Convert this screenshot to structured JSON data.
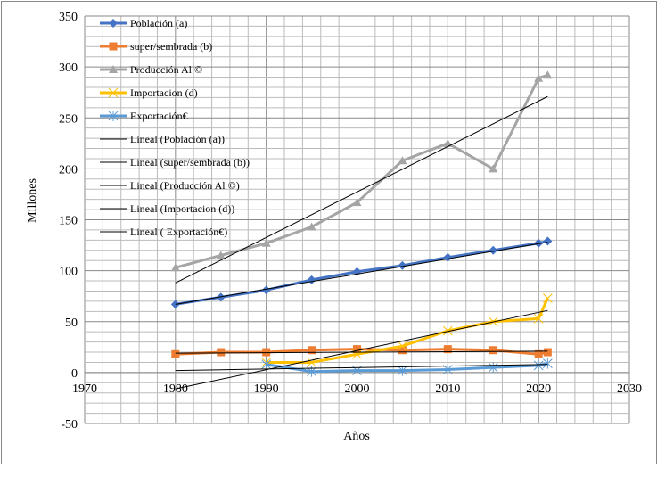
{
  "chart_data": {
    "type": "line",
    "xlabel": "Años",
    "ylabel": "Millones",
    "xlim": [
      1970,
      2030
    ],
    "ylim": [
      -50,
      350
    ],
    "xticks": [
      1970,
      1980,
      1990,
      2000,
      2010,
      2020,
      2030
    ],
    "yticks": [
      -50,
      0,
      50,
      100,
      150,
      200,
      250,
      300,
      350
    ],
    "grid": true,
    "legend": "top-left",
    "series": [
      {
        "name": "Población (a)",
        "color": "#4472C4",
        "marker": "diamond",
        "x": [
          1980,
          1985,
          1990,
          1995,
          2000,
          2005,
          2010,
          2015,
          2020,
          2021
        ],
        "values": [
          67,
          74,
          81,
          91,
          99,
          105,
          113,
          120,
          127,
          129
        ]
      },
      {
        "name": "super/sembrada (b)",
        "color": "#ED7D31",
        "marker": "square",
        "x": [
          1980,
          1985,
          1990,
          1995,
          2000,
          2005,
          2010,
          2015,
          2020,
          2021
        ],
        "values": [
          18,
          20,
          20,
          22,
          23,
          22,
          23,
          22,
          18,
          20
        ]
      },
      {
        "name": "Producción Al ©",
        "color": "#A5A5A5",
        "marker": "triangle",
        "x": [
          1980,
          1985,
          1990,
          1995,
          2000,
          2005,
          2010,
          2015,
          2020,
          2021
        ],
        "values": [
          103,
          115,
          127,
          143,
          167,
          208,
          225,
          200,
          289,
          292
        ]
      },
      {
        "name": "Importacion (d)",
        "color": "#FFC000",
        "marker": "x",
        "x": [
          1990,
          1995,
          2000,
          2005,
          2010,
          2015,
          2020,
          2021
        ],
        "values": [
          10,
          10,
          18,
          26,
          41,
          50,
          53,
          73
        ]
      },
      {
        "name": " Exportación€",
        "color": "#5B9BD5",
        "marker": "star",
        "x": [
          1990,
          1995,
          2000,
          2005,
          2010,
          2015,
          2020,
          2021
        ],
        "values": [
          8,
          1,
          2,
          2,
          3,
          5,
          7,
          9
        ]
      }
    ],
    "trendlines": [
      {
        "name": "Lineal (Población (a))",
        "x": [
          1980,
          2021
        ],
        "values": [
          67,
          128
        ]
      },
      {
        "name": "Lineal (super/sembrada (b))",
        "x": [
          1980,
          2021
        ],
        "values": [
          19,
          21
        ]
      },
      {
        "name": "Lineal (Producción Al  ©)",
        "x": [
          1980,
          2021
        ],
        "values": [
          88,
          271
        ]
      },
      {
        "name": "Lineal (Importacion (d))",
        "x": [
          1980,
          2021
        ],
        "values": [
          -16,
          61
        ]
      },
      {
        "name": "Lineal ( Exportación€)",
        "x": [
          1980,
          2021
        ],
        "values": [
          2,
          8
        ]
      }
    ]
  }
}
